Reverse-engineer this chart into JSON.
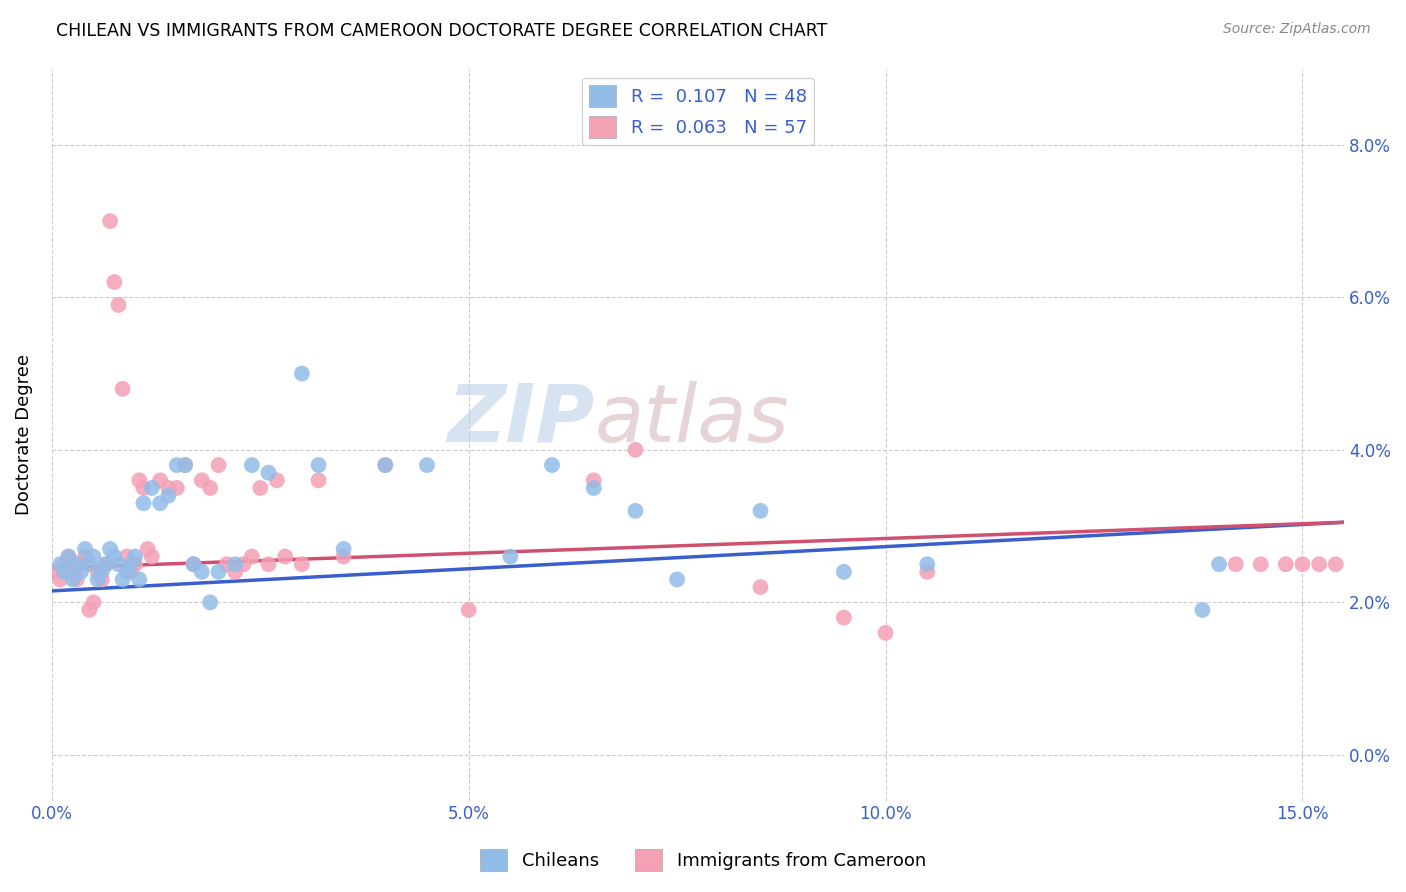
{
  "title": "CHILEAN VS IMMIGRANTS FROM CAMEROON DOCTORATE DEGREE CORRELATION CHART",
  "source": "Source: ZipAtlas.com",
  "ylabel": "Doctorate Degree",
  "xlim": [
    0.0,
    15.5
  ],
  "ylim": [
    -0.6,
    9.0
  ],
  "x_tick_vals": [
    0,
    5,
    10,
    15
  ],
  "x_tick_labels": [
    "0.0%",
    "5.0%",
    "10.0%",
    "15.0%"
  ],
  "y_tick_vals": [
    0,
    2,
    4,
    6,
    8
  ],
  "y_tick_labels": [
    "0.0%",
    "2.0%",
    "4.0%",
    "6.0%",
    "8.0%"
  ],
  "chilean_R": 0.107,
  "chilean_N": 48,
  "cameroon_R": 0.063,
  "cameroon_N": 57,
  "chilean_color": "#92bce8",
  "cameroon_color": "#f4a0b5",
  "chilean_line_color": "#3a5fcd",
  "cameroon_line_color": "#d05070",
  "legend_label_1": "Chileans",
  "legend_label_2": "Immigrants from Cameroon",
  "watermark_text": "ZIPatlas",
  "background_color": "#ffffff",
  "grid_color": "#cccccc",
  "chilean_x": [
    0.1,
    0.15,
    0.2,
    0.25,
    0.3,
    0.35,
    0.4,
    0.45,
    0.5,
    0.55,
    0.6,
    0.65,
    0.7,
    0.75,
    0.8,
    0.85,
    0.9,
    0.95,
    1.0,
    1.05,
    1.1,
    1.2,
    1.3,
    1.4,
    1.5,
    1.6,
    1.7,
    1.8,
    1.9,
    2.0,
    2.2,
    2.4,
    2.6,
    3.0,
    3.2,
    3.5,
    4.0,
    4.5,
    5.5,
    6.0,
    6.5,
    7.0,
    7.5,
    8.5,
    9.5,
    10.5,
    13.8,
    14.0
  ],
  "chilean_y": [
    2.5,
    2.4,
    2.6,
    2.3,
    2.5,
    2.4,
    2.7,
    2.5,
    2.6,
    2.3,
    2.4,
    2.5,
    2.7,
    2.6,
    2.5,
    2.3,
    2.4,
    2.5,
    2.6,
    2.3,
    3.3,
    3.5,
    3.3,
    3.4,
    3.8,
    3.8,
    2.5,
    2.4,
    2.0,
    2.4,
    2.5,
    3.8,
    3.7,
    5.0,
    3.8,
    2.7,
    3.8,
    3.8,
    2.6,
    3.8,
    3.5,
    3.2,
    2.3,
    3.2,
    2.4,
    2.5,
    1.9,
    2.5
  ],
  "cameroon_x": [
    0.05,
    0.1,
    0.15,
    0.2,
    0.25,
    0.3,
    0.35,
    0.4,
    0.45,
    0.5,
    0.55,
    0.6,
    0.65,
    0.7,
    0.75,
    0.8,
    0.85,
    0.9,
    0.95,
    1.0,
    1.05,
    1.1,
    1.15,
    1.2,
    1.3,
    1.4,
    1.5,
    1.6,
    1.7,
    1.8,
    1.9,
    2.0,
    2.1,
    2.2,
    2.3,
    2.4,
    2.5,
    2.6,
    2.7,
    2.8,
    3.0,
    3.2,
    3.5,
    4.0,
    5.0,
    6.5,
    7.0,
    8.5,
    9.5,
    10.0,
    10.5,
    14.2,
    14.5,
    14.8,
    15.0,
    15.2,
    15.4
  ],
  "cameroon_y": [
    2.4,
    2.3,
    2.5,
    2.6,
    2.4,
    2.3,
    2.5,
    2.6,
    1.9,
    2.0,
    2.4,
    2.3,
    2.5,
    7.0,
    6.2,
    5.9,
    4.8,
    2.6,
    2.4,
    2.5,
    3.6,
    3.5,
    2.7,
    2.6,
    3.6,
    3.5,
    3.5,
    3.8,
    2.5,
    3.6,
    3.5,
    3.8,
    2.5,
    2.4,
    2.5,
    2.6,
    3.5,
    2.5,
    3.6,
    2.6,
    2.5,
    3.6,
    2.6,
    3.8,
    1.9,
    3.6,
    4.0,
    2.2,
    1.8,
    1.6,
    2.4,
    2.5,
    2.5,
    2.5,
    2.5,
    2.5,
    2.5
  ]
}
